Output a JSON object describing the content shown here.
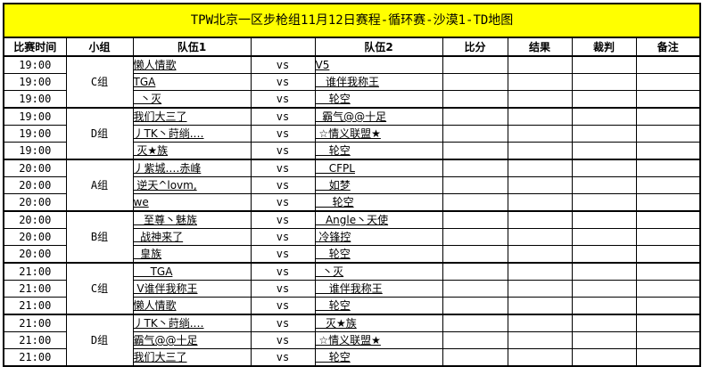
{
  "title": "TPW北京一区步枪组11月12日赛程-循环赛-沙漠1-TD地图",
  "headers": [
    "比赛时间",
    "小组",
    "队伍1",
    "",
    "队伍2",
    "比分",
    "结果",
    "裁判",
    "备注"
  ],
  "vs_label": "vs",
  "groups": [
    {
      "label": "C组",
      "rows": [
        {
          "time": "19:00",
          "team1": "懒人情歌",
          "team2": "V5"
        },
        {
          "time": "19:00",
          "team1": "TGA",
          "team2": "   谁伴我称王"
        },
        {
          "time": "19:00",
          "team1": "  丶灭",
          "team2": "    轮空"
        }
      ]
    },
    {
      "label": "D组",
      "rows": [
        {
          "time": "19:00",
          "team1": "我们大三了",
          "team2": "  霸气@@十足"
        },
        {
          "time": "19:00",
          "team1": "丿TK丶莳绱.…",
          "team2": " ☆情义联盟★"
        },
        {
          "time": "19:00",
          "team1": " 灭★族",
          "team2": "    轮空"
        }
      ]
    },
    {
      "label": "A组",
      "rows": [
        {
          "time": "20:00",
          "team1": "丿紫城.…赤峰",
          "team2": "    CFPL"
        },
        {
          "time": "20:00",
          "team1": " 逆天^lovm,",
          "team2": "    如梦"
        },
        {
          "time": "20:00",
          "team1": "we",
          "team2": "     轮空"
        }
      ]
    },
    {
      "label": "B组",
      "rows": [
        {
          "time": "20:00",
          "team1": "   至尊丶魅族",
          "team2": "   Angle丶天使"
        },
        {
          "time": "20:00",
          "team1": "  战神来了",
          "team2": " 冷锋控"
        },
        {
          "time": "20:00",
          "team1": "  皇族",
          "team2": "    轮空"
        }
      ]
    },
    {
      "label": "C组",
      "rows": [
        {
          "time": "21:00",
          "team1": "     TGA",
          "team2": "  丶灭"
        },
        {
          "time": "21:00",
          "team1": " V谁伴我称王",
          "team2": "    谁伴我称王"
        },
        {
          "time": "21:00",
          "team1": "懒人情歌",
          "team2": "    轮空"
        }
      ]
    },
    {
      "label": "D组",
      "rows": [
        {
          "time": "21:00",
          "team1": "丿TK丶莳绱.…",
          "team2": "   灭★族"
        },
        {
          "time": "21:00",
          "team1": "霸气@@十足",
          "team2": " ☆情义联盟★"
        },
        {
          "time": "21:00",
          "team1": "我们大三了",
          "team2": "    轮空"
        }
      ]
    }
  ]
}
